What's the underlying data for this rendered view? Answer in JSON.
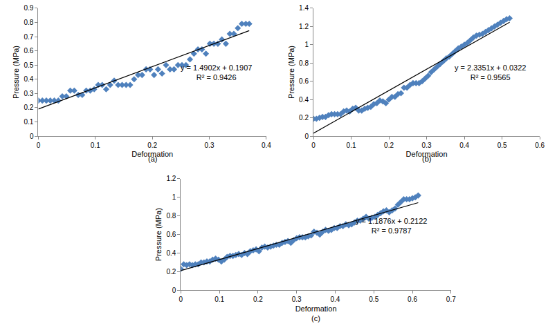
{
  "chart_data": [
    {
      "type": "scatter",
      "caption": "(a)",
      "x_label": "Deformation",
      "y_label": "Pressure (MPa)",
      "color": "#4f81bd",
      "marker": "diamond",
      "grid": false,
      "xlim": [
        0,
        0.4
      ],
      "xticks": [
        0,
        0.1,
        0.2,
        0.3,
        0.4
      ],
      "ylim": [
        0,
        0.9
      ],
      "yticks": [
        0,
        0.1,
        0.2,
        0.3,
        0.4,
        0.5,
        0.6,
        0.7,
        0.8,
        0.9
      ],
      "x": [
        0,
        0.007,
        0.014,
        0.021,
        0.028,
        0.035,
        0.042,
        0.049,
        0.056,
        0.063,
        0.07,
        0.077,
        0.084,
        0.091,
        0.098,
        0.105,
        0.112,
        0.119,
        0.126,
        0.133,
        0.14,
        0.147,
        0.154,
        0.161,
        0.168,
        0.175,
        0.182,
        0.189,
        0.196,
        0.203,
        0.21,
        0.217,
        0.224,
        0.231,
        0.238,
        0.245,
        0.252,
        0.259,
        0.266,
        0.273,
        0.28,
        0.287,
        0.294,
        0.301,
        0.308,
        0.315,
        0.322,
        0.329,
        0.336,
        0.343,
        0.35,
        0.357,
        0.364,
        0.37
      ],
      "values": [
        0.25,
        0.25,
        0.25,
        0.25,
        0.25,
        0.25,
        0.28,
        0.28,
        0.32,
        0.32,
        0.29,
        0.29,
        0.32,
        0.32,
        0.33,
        0.36,
        0.36,
        0.33,
        0.36,
        0.39,
        0.36,
        0.36,
        0.36,
        0.36,
        0.4,
        0.43,
        0.43,
        0.47,
        0.47,
        0.43,
        0.47,
        0.44,
        0.5,
        0.47,
        0.47,
        0.5,
        0.5,
        0.5,
        0.54,
        0.58,
        0.61,
        0.61,
        0.58,
        0.65,
        0.65,
        0.65,
        0.68,
        0.65,
        0.72,
        0.72,
        0.76,
        0.79,
        0.79,
        0.79
      ],
      "trendline": {
        "slope": 1.4902,
        "intercept": 0.1907,
        "equation": "y = 1.4902x + 0.1907",
        "r2": "R² = 0.9426",
        "color": "#000000",
        "line_style": "solid"
      }
    },
    {
      "type": "scatter",
      "caption": "(b)",
      "x_label": "Deformation",
      "y_label": "Pressure (MPa)",
      "color": "#4f81bd",
      "marker": "diamond",
      "grid": false,
      "xlim": [
        0,
        0.6
      ],
      "xticks": [
        0,
        0.1,
        0.2,
        0.3,
        0.4,
        0.5,
        0.6
      ],
      "ylim": [
        0,
        1.4
      ],
      "yticks": [
        0,
        0.2,
        0.4,
        0.6,
        0.8,
        1,
        1.2,
        1.4
      ],
      "x": [
        0,
        0.008,
        0.016,
        0.024,
        0.032,
        0.04,
        0.048,
        0.056,
        0.064,
        0.072,
        0.08,
        0.088,
        0.096,
        0.104,
        0.112,
        0.12,
        0.128,
        0.136,
        0.144,
        0.152,
        0.16,
        0.168,
        0.176,
        0.184,
        0.192,
        0.2,
        0.208,
        0.216,
        0.224,
        0.232,
        0.24,
        0.248,
        0.256,
        0.264,
        0.272,
        0.28,
        0.288,
        0.296,
        0.304,
        0.312,
        0.32,
        0.328,
        0.336,
        0.344,
        0.352,
        0.36,
        0.368,
        0.376,
        0.384,
        0.392,
        0.4,
        0.408,
        0.416,
        0.424,
        0.432,
        0.44,
        0.448,
        0.456,
        0.464,
        0.472,
        0.48,
        0.488,
        0.496,
        0.504,
        0.512,
        0.52
      ],
      "values": [
        0.19,
        0.19,
        0.2,
        0.21,
        0.21,
        0.23,
        0.24,
        0.24,
        0.24,
        0.24,
        0.27,
        0.28,
        0.27,
        0.3,
        0.31,
        0.28,
        0.28,
        0.3,
        0.31,
        0.32,
        0.35,
        0.36,
        0.39,
        0.38,
        0.36,
        0.4,
        0.43,
        0.43,
        0.46,
        0.47,
        0.53,
        0.53,
        0.56,
        0.58,
        0.58,
        0.58,
        0.6,
        0.63,
        0.66,
        0.7,
        0.73,
        0.76,
        0.79,
        0.82,
        0.85,
        0.87,
        0.9,
        0.93,
        0.96,
        0.98,
        1.0,
        1.02,
        1.05,
        1.08,
        1.1,
        1.11,
        1.12,
        1.14,
        1.16,
        1.18,
        1.2,
        1.22,
        1.24,
        1.26,
        1.28,
        1.29
      ],
      "trendline": {
        "slope": 2.3351,
        "intercept": 0.0322,
        "equation": "y = 2.3351x + 0.0322",
        "r2": "R² = 0.9565",
        "color": "#000000",
        "line_style": "solid"
      }
    },
    {
      "type": "scatter",
      "caption": "(c)",
      "x_label": "Deformation",
      "y_label": "Pressure (MPa)",
      "color": "#4f81bd",
      "marker": "diamond",
      "grid": false,
      "xlim": [
        0,
        0.7
      ],
      "xticks": [
        0,
        0.1,
        0.2,
        0.3,
        0.4,
        0.5,
        0.6,
        0.7
      ],
      "ylim": [
        0,
        1.2
      ],
      "yticks": [
        0,
        0.2,
        0.4,
        0.6,
        0.8,
        1,
        1.2
      ],
      "x": [
        0,
        0.0075,
        0.015,
        0.0225,
        0.03,
        0.0375,
        0.045,
        0.0525,
        0.06,
        0.0675,
        0.075,
        0.0825,
        0.09,
        0.0975,
        0.105,
        0.1125,
        0.12,
        0.1275,
        0.135,
        0.1425,
        0.15,
        0.1575,
        0.165,
        0.1725,
        0.18,
        0.1875,
        0.195,
        0.2025,
        0.21,
        0.2175,
        0.225,
        0.2325,
        0.24,
        0.2475,
        0.255,
        0.2625,
        0.27,
        0.2775,
        0.285,
        0.2925,
        0.3,
        0.3075,
        0.315,
        0.3225,
        0.33,
        0.3375,
        0.345,
        0.3525,
        0.36,
        0.3675,
        0.375,
        0.3825,
        0.39,
        0.3975,
        0.405,
        0.4125,
        0.42,
        0.4275,
        0.435,
        0.4425,
        0.45,
        0.4575,
        0.465,
        0.4725,
        0.48,
        0.4875,
        0.495,
        0.5025,
        0.51,
        0.5175,
        0.525,
        0.5325,
        0.54,
        0.5475,
        0.555,
        0.5625,
        0.57,
        0.5775,
        0.585,
        0.5925,
        0.6,
        0.6075,
        0.615
      ],
      "values": [
        0.23,
        0.28,
        0.27,
        0.28,
        0.27,
        0.28,
        0.28,
        0.3,
        0.3,
        0.31,
        0.31,
        0.33,
        0.34,
        0.33,
        0.31,
        0.33,
        0.36,
        0.37,
        0.37,
        0.38,
        0.39,
        0.38,
        0.4,
        0.39,
        0.42,
        0.43,
        0.44,
        0.42,
        0.46,
        0.47,
        0.46,
        0.47,
        0.48,
        0.49,
        0.49,
        0.51,
        0.52,
        0.53,
        0.51,
        0.54,
        0.56,
        0.57,
        0.57,
        0.57,
        0.58,
        0.59,
        0.63,
        0.62,
        0.6,
        0.63,
        0.65,
        0.64,
        0.65,
        0.67,
        0.67,
        0.69,
        0.69,
        0.71,
        0.7,
        0.71,
        0.73,
        0.75,
        0.75,
        0.77,
        0.79,
        0.77,
        0.78,
        0.79,
        0.81,
        0.83,
        0.85,
        0.86,
        0.84,
        0.86,
        0.88,
        0.92,
        0.95,
        0.98,
        0.98,
        0.98,
        0.99,
        1.0,
        1.02
      ],
      "trendline": {
        "slope": 1.1876,
        "intercept": 0.2122,
        "equation": "y = 1.1876x + 0.2122",
        "r2": "R² = 0.9787",
        "color": "#000000",
        "line_style": "solid"
      }
    }
  ]
}
